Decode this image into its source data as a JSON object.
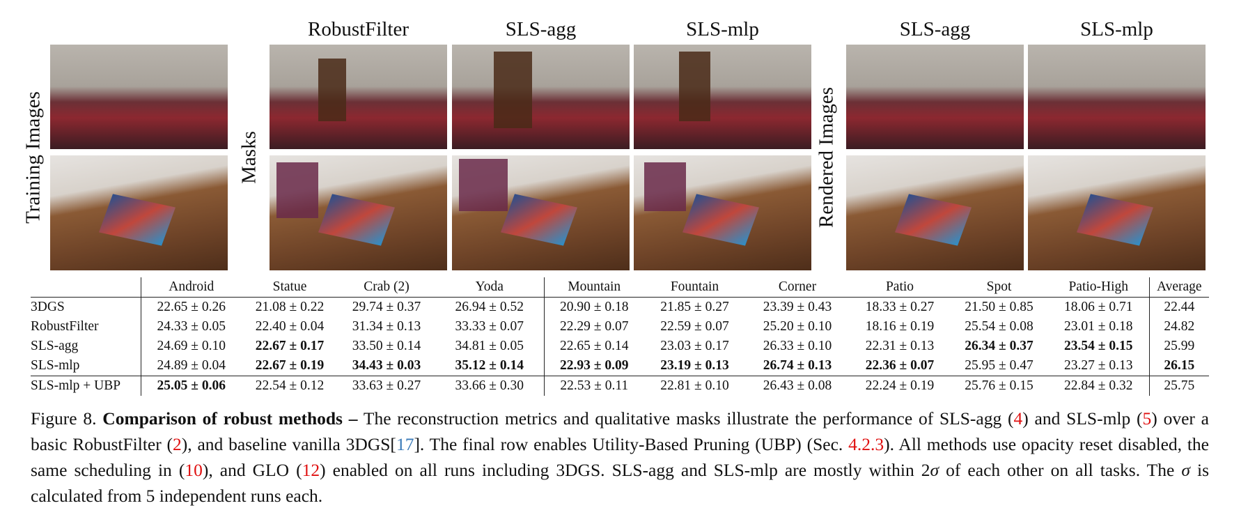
{
  "panels": {
    "training_label": "Training Images",
    "masks_label": "Masks",
    "rendered_label": "Rendered Images",
    "mask_titles": [
      "RobustFilter",
      "SLS-agg",
      "SLS-mlp"
    ],
    "rendered_titles": [
      "SLS-agg",
      "SLS-mlp"
    ]
  },
  "table": {
    "columns": [
      "Android",
      "Statue",
      "Crab (2)",
      "Yoda",
      "Mountain",
      "Fountain",
      "Corner",
      "Patio",
      "Spot",
      "Patio-High",
      "Average"
    ],
    "rows": [
      {
        "label": "3DGS",
        "cells": [
          "22.65 ± 0.26",
          "21.08 ± 0.22",
          "29.74 ± 0.37",
          "26.94 ± 0.52",
          "20.90 ± 0.18",
          "21.85 ± 0.27",
          "23.39 ± 0.43",
          "18.33 ± 0.27",
          "21.50 ± 0.85",
          "18.06 ± 0.71",
          "22.44"
        ]
      },
      {
        "label": "RobustFilter",
        "cells": [
          "24.33 ± 0.05",
          "22.40 ± 0.04",
          "31.34 ± 0.13",
          "33.33 ± 0.07",
          "22.29 ± 0.07",
          "22.59 ± 0.07",
          "25.20 ± 0.10",
          "18.16 ± 0.19",
          "25.54 ± 0.08",
          "23.01 ± 0.18",
          "24.82"
        ]
      },
      {
        "label": "SLS-agg",
        "cells": [
          "24.69 ± 0.10",
          "22.67 ± 0.17",
          "33.50 ± 0.14",
          "34.81 ± 0.05",
          "22.65 ± 0.14",
          "23.03 ± 0.17",
          "26.33 ± 0.10",
          "22.31 ± 0.13",
          "26.34 ± 0.37",
          "23.54 ± 0.15",
          "25.99"
        ],
        "bold": [
          1,
          8,
          9
        ]
      },
      {
        "label": "SLS-mlp",
        "cells": [
          "24.89 ± 0.04",
          "22.67 ± 0.19",
          "34.43 ± 0.03",
          "35.12 ± 0.14",
          "22.93 ± 0.09",
          "23.19 ± 0.13",
          "26.74 ± 0.13",
          "22.36 ± 0.07",
          "25.95 ± 0.47",
          "23.27 ± 0.13",
          "26.15"
        ],
        "bold": [
          1,
          2,
          3,
          4,
          5,
          6,
          7,
          10
        ]
      },
      {
        "label": "SLS-mlp + UBP",
        "cells": [
          "25.05 ± 0.06",
          "22.54 ± 0.12",
          "33.63 ± 0.27",
          "33.66 ± 0.30",
          "22.53 ± 0.11",
          "22.81 ± 0.10",
          "26.43 ± 0.08",
          "22.24 ± 0.19",
          "25.76 ± 0.15",
          "22.84 ± 0.32",
          "25.75"
        ],
        "bold": [
          0
        ]
      }
    ]
  },
  "caption": [
    {
      "text": "Figure 8. "
    },
    {
      "text": "Comparison of robust methods –",
      "bold": true
    },
    {
      "text": " The reconstruction metrics and qualitative masks illustrate the performance of SLS-agg ("
    },
    {
      "text": "4",
      "color": "#e01010"
    },
    {
      "text": ") and SLS-mlp ("
    },
    {
      "text": "5",
      "color": "#e01010"
    },
    {
      "text": ") over a basic RobustFilter ("
    },
    {
      "text": "2",
      "color": "#e01010"
    },
    {
      "text": "), and baseline vanilla 3DGS["
    },
    {
      "text": "17",
      "color": "#3a7ab8"
    },
    {
      "text": "]. The final row enables Utility-Based Pruning (UBP) (Sec. "
    },
    {
      "text": "4.2.3",
      "color": "#e01010"
    },
    {
      "text": "). All methods use opacity reset disabled, the same scheduling in ("
    },
    {
      "text": "10",
      "color": "#e01010"
    },
    {
      "text": "), and GLO ("
    },
    {
      "text": "12",
      "color": "#e01010"
    },
    {
      "text": ") enabled on all runs including 3DGS. SLS-agg and SLS-mlp are mostly within 2"
    },
    {
      "text": "σ",
      "italic": true
    },
    {
      "text": " of each other on all tasks. The "
    },
    {
      "text": "σ",
      "italic": true
    },
    {
      "text": " is calculated from 5 independent runs each."
    }
  ]
}
